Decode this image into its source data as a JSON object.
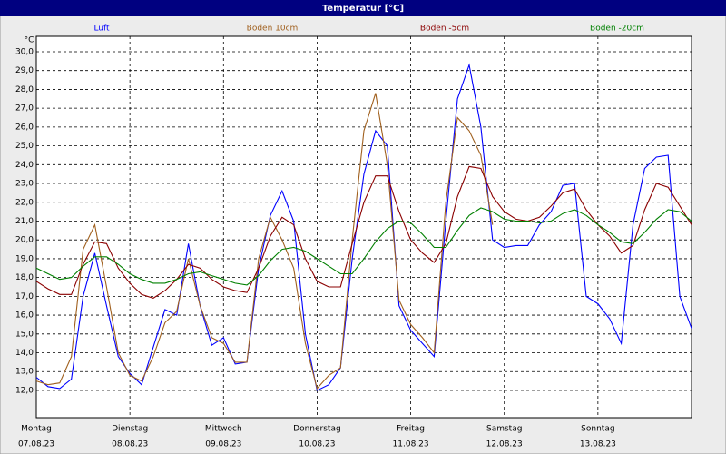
{
  "chart_data": {
    "type": "line",
    "title": "Temperatur [°C]",
    "ylabel": "°C",
    "x": [
      0,
      3,
      6,
      9,
      12,
      15,
      18,
      21,
      24,
      27,
      30,
      33,
      36,
      39,
      42,
      45,
      48,
      51,
      54,
      57,
      60,
      63,
      66,
      69,
      72,
      75,
      78,
      81,
      84,
      87,
      90,
      93,
      96,
      99,
      102,
      105,
      108,
      111,
      114,
      117,
      120,
      123,
      126,
      129,
      132,
      135,
      138,
      141,
      144,
      147,
      150,
      153,
      156,
      159,
      162,
      165,
      168
    ],
    "xlim": [
      0,
      168
    ],
    "xticks": [
      {
        "value": 0,
        "label": "Montag",
        "date": "07.08.23"
      },
      {
        "value": 24,
        "label": "Dienstag",
        "date": "08.08.23"
      },
      {
        "value": 48,
        "label": "Mittwoch",
        "date": "09.08.23"
      },
      {
        "value": 72,
        "label": "Donnerstag",
        "date": "10.08.23"
      },
      {
        "value": 96,
        "label": "Freitag",
        "date": "11.08.23"
      },
      {
        "value": 120,
        "label": "Samstag",
        "date": "12.08.23"
      },
      {
        "value": 144,
        "label": "Sonntag",
        "date": "13.08.23"
      }
    ],
    "ylim": [
      10.55,
      30.82
    ],
    "yticks": [
      {
        "value": 12,
        "label": "12,0"
      },
      {
        "value": 13,
        "label": "13,0"
      },
      {
        "value": 14,
        "label": "14,0"
      },
      {
        "value": 15,
        "label": "15,0"
      },
      {
        "value": 16,
        "label": "16,0"
      },
      {
        "value": 17,
        "label": "17,0"
      },
      {
        "value": 18,
        "label": "18,0"
      },
      {
        "value": 19,
        "label": "19,0"
      },
      {
        "value": 20,
        "label": "20,0"
      },
      {
        "value": 21,
        "label": "21,0"
      },
      {
        "value": 22,
        "label": "22,0"
      },
      {
        "value": 23,
        "label": "23,0"
      },
      {
        "value": 24,
        "label": "24,0"
      },
      {
        "value": 25,
        "label": "25,0"
      },
      {
        "value": 26,
        "label": "26,0"
      },
      {
        "value": 27,
        "label": "27,0"
      },
      {
        "value": 28,
        "label": "28,0"
      },
      {
        "value": 29,
        "label": "29,0"
      },
      {
        "value": 30,
        "label": "30,0"
      }
    ],
    "grid": true,
    "series": [
      {
        "name": "Luft",
        "color": "#0000ff",
        "values": [
          12.7,
          12.2,
          12.1,
          12.6,
          17.0,
          19.3,
          16.5,
          13.8,
          12.9,
          12.3,
          14.3,
          16.3,
          16.0,
          19.8,
          16.5,
          14.4,
          14.8,
          13.4,
          13.5,
          18.5,
          21.3,
          22.6,
          21.0,
          15.0,
          12.0,
          12.3,
          13.2,
          19.0,
          23.5,
          25.8,
          25.0,
          16.5,
          15.2,
          14.5,
          13.8,
          21.0,
          27.5,
          29.3,
          26.0,
          20.0,
          19.6,
          19.7,
          19.7,
          20.8,
          21.5,
          22.9,
          23.0,
          17.0,
          16.6,
          15.8,
          14.5,
          20.8,
          23.8,
          24.4,
          24.5,
          17.0,
          15.3
        ]
      },
      {
        "name": "Boden 10cm",
        "color": "#a0601e",
        "values": [
          12.5,
          12.3,
          12.4,
          13.8,
          19.5,
          20.8,
          17.5,
          14.0,
          12.8,
          12.5,
          13.8,
          15.6,
          16.2,
          19.0,
          16.5,
          14.8,
          14.5,
          13.5,
          13.5,
          19.0,
          21.2,
          20.0,
          18.5,
          14.5,
          12.1,
          12.8,
          13.2,
          20.0,
          25.8,
          27.8,
          24.0,
          16.8,
          15.5,
          14.8,
          14.0,
          22.0,
          26.5,
          25.8,
          24.5,
          20.8,
          null,
          null,
          null,
          null,
          null,
          null,
          null,
          null,
          null,
          null,
          null,
          null,
          null,
          null,
          null,
          null,
          null
        ]
      },
      {
        "name": "Boden -5cm",
        "color": "#8b0000",
        "values": [
          17.8,
          17.4,
          17.1,
          17.1,
          18.7,
          19.9,
          19.8,
          18.5,
          17.7,
          17.1,
          16.9,
          17.3,
          17.9,
          18.7,
          18.5,
          17.9,
          17.5,
          17.3,
          17.2,
          18.5,
          20.2,
          21.2,
          20.8,
          19.0,
          17.8,
          17.5,
          17.5,
          19.8,
          22.0,
          23.4,
          23.4,
          21.5,
          20.0,
          19.3,
          18.8,
          19.8,
          22.3,
          23.9,
          23.8,
          22.3,
          21.5,
          21.1,
          21.0,
          21.2,
          21.8,
          22.5,
          22.7,
          21.6,
          20.8,
          20.2,
          19.3,
          19.7,
          21.6,
          23.0,
          22.8,
          21.8,
          20.8
        ]
      },
      {
        "name": "Boden -20cm",
        "color": "#008000",
        "values": [
          18.5,
          18.2,
          17.9,
          18.0,
          18.6,
          19.1,
          19.1,
          18.7,
          18.2,
          17.9,
          17.7,
          17.7,
          17.9,
          18.2,
          18.3,
          18.1,
          17.9,
          17.7,
          17.6,
          18.1,
          18.9,
          19.5,
          19.6,
          19.4,
          19.0,
          18.6,
          18.2,
          18.2,
          19.0,
          19.9,
          20.6,
          21.0,
          20.9,
          20.3,
          19.6,
          19.6,
          20.5,
          21.3,
          21.7,
          21.5,
          21.1,
          21.0,
          21.0,
          20.9,
          21.0,
          21.4,
          21.6,
          21.3,
          20.8,
          20.4,
          19.9,
          19.8,
          20.4,
          21.1,
          21.6,
          21.5,
          21.0
        ]
      }
    ]
  }
}
